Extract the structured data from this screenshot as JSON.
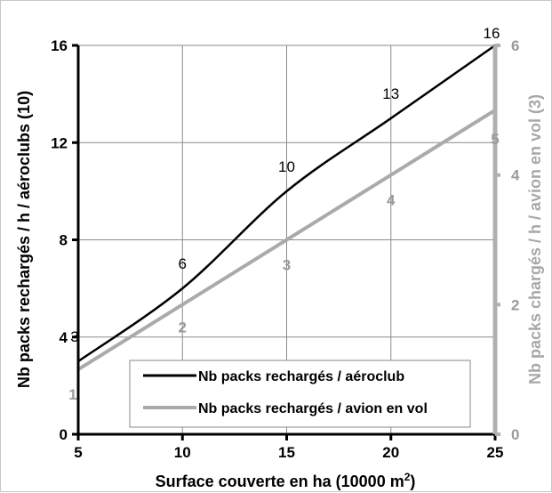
{
  "chart_data": {
    "type": "line",
    "xlabel": "Surface couverte en ha (10000 m²)",
    "xlabel_main": "Surface couverte en ha (10000 m",
    "xlabel_sup": "2",
    "xlabel_end": ")",
    "ylabel": "Nb packs rechargés / h / aéroclubs (10)",
    "y2label": "Nb packs chargés  / h / avion en vol (3)",
    "xlim": [
      5,
      25
    ],
    "ylim": [
      0,
      16
    ],
    "y2lim": [
      0,
      6
    ],
    "x_ticks": [
      "5",
      "10",
      "15",
      "20",
      "25"
    ],
    "y_ticks": [
      "0",
      "4",
      "8",
      "12",
      "16"
    ],
    "y2_ticks": [
      "0",
      "2",
      "4",
      "6"
    ],
    "grid": true,
    "legend_position": "bottom-center",
    "series": [
      {
        "name": "Nb packs rechargés / aéroclub",
        "axis": "left",
        "color": "#000000",
        "x": [
          5,
          10,
          15,
          20,
          25
        ],
        "values": [
          3,
          6,
          10,
          13,
          16
        ],
        "data_labels": [
          "3",
          "6",
          "10",
          "13",
          "16"
        ]
      },
      {
        "name": "Nb packs rechargés / avion en vol",
        "axis": "right",
        "color": "#aaaaaa",
        "x": [
          5,
          10,
          15,
          20,
          25
        ],
        "values": [
          1,
          2,
          3,
          4,
          5
        ],
        "data_labels": [
          "1",
          "2",
          "3",
          "4",
          "5"
        ]
      }
    ]
  }
}
